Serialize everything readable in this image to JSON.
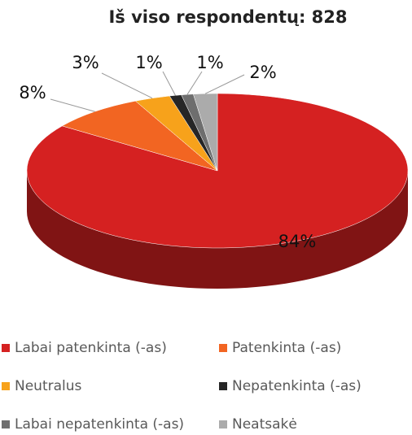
{
  "chart_data": {
    "type": "pie",
    "title": "Iš viso respondentų: 828",
    "categories": [
      "Labai patenkinta (-as)",
      "Patenkinta (-as)",
      "Neutralus",
      "Nepatenkinta (-as)",
      "Labai nepatenkinta (-as)",
      "Neatsakė"
    ],
    "values": [
      84,
      8,
      3,
      1,
      1,
      2
    ],
    "value_labels": [
      "84%",
      "8%",
      "3%",
      "1%",
      "1%",
      "2%"
    ],
    "colors": [
      "#d52121",
      "#f26522",
      "#f7a21b",
      "#262626",
      "#6e6e6e",
      "#ababab"
    ],
    "legend": "bottom"
  }
}
